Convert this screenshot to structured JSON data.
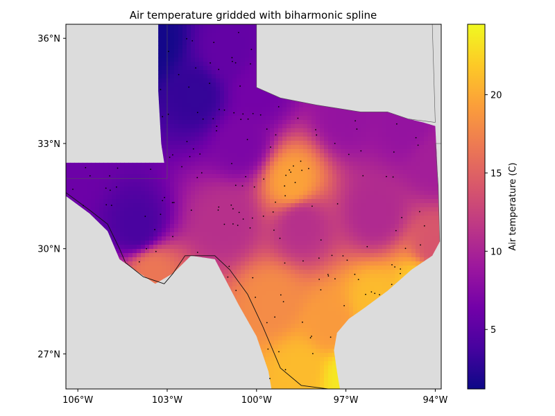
{
  "chart_data": {
    "type": "heatmap",
    "title": "Air temperature gridded with biharmonic spline",
    "colorbar": {
      "label": "Air temperature (C)",
      "ticks": [
        5,
        10,
        15,
        20
      ],
      "range": [
        1.2,
        24.5
      ],
      "colormap": "plasma"
    },
    "x_ticks": [
      {
        "value": -106,
        "label": "106°W"
      },
      {
        "value": -103,
        "label": "103°W"
      },
      {
        "value": -100,
        "label": "100°W"
      },
      {
        "value": -97,
        "label": "97°W"
      },
      {
        "value": -94,
        "label": "94°W"
      }
    ],
    "y_ticks": [
      {
        "value": 36,
        "label": "36°N"
      },
      {
        "value": 33,
        "label": "33°N"
      },
      {
        "value": 30,
        "label": "30°N"
      },
      {
        "value": 27,
        "label": "27°N"
      }
    ],
    "lon_range": [
      -106.4,
      -93.8
    ],
    "lat_range": [
      26.0,
      36.4
    ],
    "background_color": "#dcdcdc",
    "colormap_stops": [
      "#0d0887",
      "#46039f",
      "#7201a8",
      "#9c179e",
      "#bd3786",
      "#d8576b",
      "#ed7953",
      "#fb9f3a",
      "#fdca26",
      "#f0f921"
    ],
    "temperature_features": [
      {
        "lon": -103.5,
        "lat": 35.9,
        "value": 1.5
      },
      {
        "lon": -102.0,
        "lat": 34.4,
        "value": 3.0
      },
      {
        "lon": -101.0,
        "lat": 35.6,
        "value": 5.5
      },
      {
        "lon": -104.0,
        "lat": 30.6,
        "value": 4.0
      },
      {
        "lon": -106.2,
        "lat": 32.5,
        "value": 6.0
      },
      {
        "lon": -100.0,
        "lat": 34.5,
        "value": 6.5
      },
      {
        "lon": -100.5,
        "lat": 33.0,
        "value": 7.0
      },
      {
        "lon": -97.0,
        "lat": 33.8,
        "value": 8.5
      },
      {
        "lon": -95.0,
        "lat": 33.5,
        "value": 8.5
      },
      {
        "lon": -94.0,
        "lat": 32.5,
        "value": 9.5
      },
      {
        "lon": -101.0,
        "lat": 30.8,
        "value": 11.0
      },
      {
        "lon": -98.5,
        "lat": 30.7,
        "value": 11.0
      },
      {
        "lon": -96.0,
        "lat": 31.0,
        "value": 10.5
      },
      {
        "lon": -98.8,
        "lat": 31.9,
        "value": 19.5
      },
      {
        "lon": -94.0,
        "lat": 30.0,
        "value": 14.0
      },
      {
        "lon": -103.5,
        "lat": 29.3,
        "value": 16.5
      },
      {
        "lon": -99.5,
        "lat": 28.5,
        "value": 18.0
      },
      {
        "lon": -97.5,
        "lat": 27.8,
        "value": 19.0
      },
      {
        "lon": -96.0,
        "lat": 28.5,
        "value": 21.0
      },
      {
        "lon": -94.5,
        "lat": 29.0,
        "value": 22.0
      },
      {
        "lon": -97.0,
        "lat": 26.3,
        "value": 23.5
      },
      {
        "lon": -98.5,
        "lat": 26.5,
        "value": 21.0
      }
    ]
  }
}
